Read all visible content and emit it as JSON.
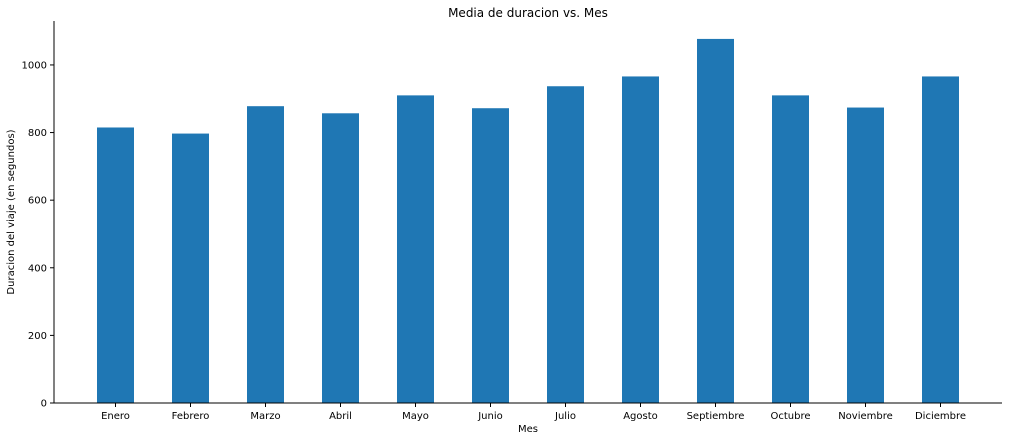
{
  "chart_data": {
    "type": "bar",
    "title": "Media de duracion vs. Mes",
    "xlabel": "Mes",
    "ylabel": "Duracion del viaje (en segundos)",
    "categories": [
      "Enero",
      "Febrero",
      "Marzo",
      "Abril",
      "Mayo",
      "Junio",
      "Julio",
      "Agosto",
      "Septiembre",
      "Octubre",
      "Noviembre",
      "Diciembre"
    ],
    "values": [
      815,
      797,
      878,
      857,
      910,
      872,
      937,
      966,
      1077,
      910,
      874,
      966
    ],
    "ylim": [
      0,
      1130
    ],
    "yticks": [
      0,
      200,
      400,
      600,
      800,
      1000
    ],
    "bar_color": "#1f77b4",
    "axis_color": "#000000",
    "grid": false,
    "legend": "none"
  }
}
